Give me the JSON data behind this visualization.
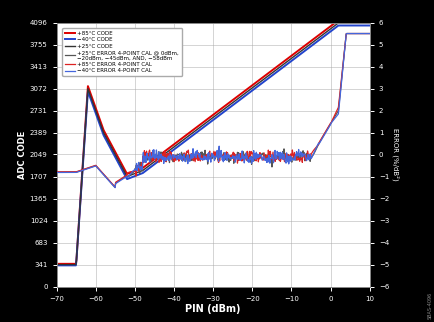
{
  "xlabel": "PIN (dBm)",
  "ylabel_left": "ADC CODE",
  "ylabel_right": "ERROR (%/dB²)",
  "x_min": -70,
  "x_max": 10,
  "y_left_min": 0,
  "y_left_max": 4096,
  "y_right_min": -6,
  "y_right_max": 6,
  "y_left_ticks": [
    0,
    341,
    683,
    1024,
    1365,
    1707,
    2049,
    2389,
    2731,
    3072,
    3413,
    3755,
    4096
  ],
  "y_right_ticks": [
    -6,
    -5,
    -4,
    -3,
    -2,
    -1,
    0,
    1,
    2,
    3,
    4,
    5,
    6
  ],
  "x_ticks": [
    -70,
    -60,
    -50,
    -40,
    -30,
    -20,
    -10,
    0,
    10
  ],
  "outer_bg": "#000000",
  "plot_bg": "#ffffff",
  "grid_color": "#aaaaaa",
  "tick_color": "#ffffff",
  "label_color": "#ffffff",
  "legend_bg": "#ffffff",
  "code_85_color": "#dd0000",
  "code_m40_color": "#2244cc",
  "code_25_color": "#333333",
  "err_25_color": "#555555",
  "err_85_color": "#dd2222",
  "err_m40_color": "#4466dd",
  "watermark": "SBAS-4096"
}
